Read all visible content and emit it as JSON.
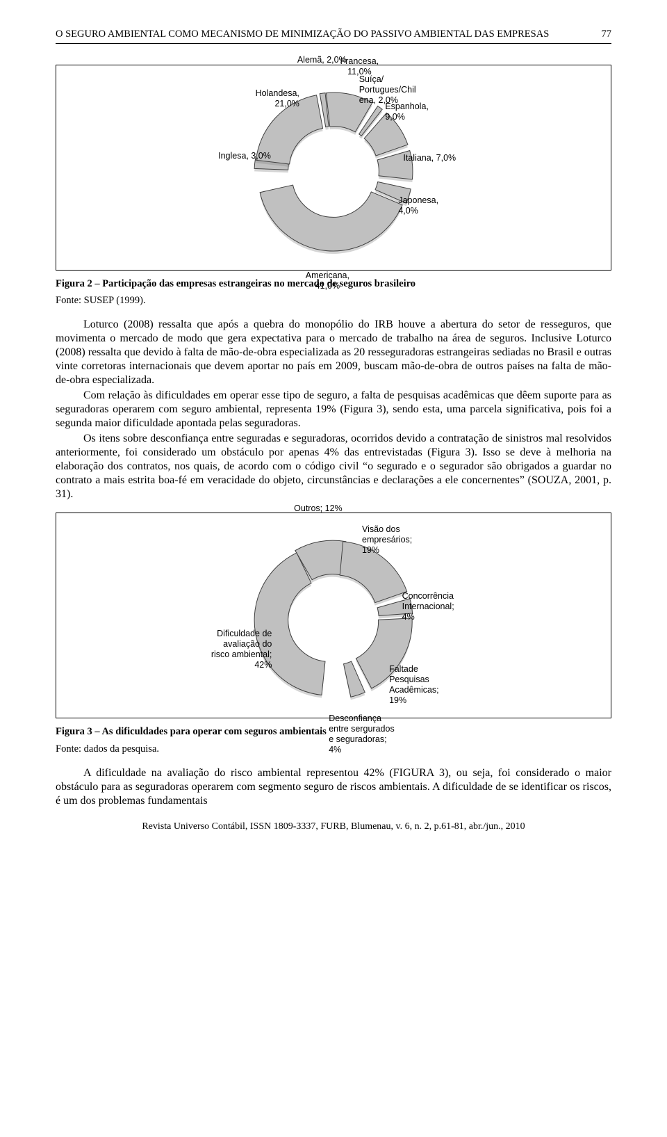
{
  "pageNumber": "77",
  "headerTitle": "O SEGURO AMBIENTAL COMO MECANISMO DE MINIMIZAÇÃO DO PASSIVO AMBIENTAL DAS EMPRESAS",
  "figure2": {
    "type": "exploded-donut",
    "background_color": "#ffffff",
    "slice_fill": "#c0c0c0",
    "slice_stroke": "#404040",
    "label_font": "Arial",
    "label_fontsize": 12.5,
    "slices": [
      {
        "label": "Alemã, 2,0%",
        "value": 2.0,
        "angle": -98
      },
      {
        "label": "Francesa,\n11,0%",
        "value": 11.0,
        "angle": -78
      },
      {
        "label": "Suíça/\nPortugues/Chil\nena, 2,0%",
        "value": 2.0,
        "angle": -54
      },
      {
        "label": "Espanhola,\n9,0%",
        "value": 9.0,
        "angle": -34
      },
      {
        "label": "Italiana, 7,0%",
        "value": 7.0,
        "angle": -5
      },
      {
        "label": "Japonesa,\n4,0%",
        "value": 4.0,
        "angle": 18
      },
      {
        "label": "Americana,\n41,0%",
        "value": 41.0,
        "angle": 95
      },
      {
        "label": "Inglesa, 3,0%",
        "value": 3.0,
        "angle": 186
      },
      {
        "label": "Holandesa,\n21,0%",
        "value": 21.0,
        "angle": 223
      }
    ],
    "captionBold": "Figura 2 – Participação das empresas estrangeiras no mercado de seguros brasileiro",
    "captionSource": "Fonte: SUSEP (1999)."
  },
  "paragraphs": [
    "Loturco (2008) ressalta que após a quebra do monopólio do IRB houve a abertura do setor de resseguros, que movimenta o mercado de modo que gera expectativa para o mercado de trabalho na área de seguros. Inclusive Loturco (2008) ressalta que devido à falta de mão-de-obra especializada as 20 resseguradoras estrangeiras sediadas no Brasil e outras vinte corretoras internacionais que devem aportar no país em 2009, buscam mão-de-obra de outros países na falta de mão-de-obra especializada.",
    "Com relação às dificuldades em operar esse tipo de seguro, a falta de pesquisas acadêmicas que dêem suporte para as seguradoras operarem com seguro ambiental, representa 19% (Figura 3), sendo esta, uma parcela significativa, pois foi a segunda maior dificuldade apontada pelas seguradoras.",
    "Os itens sobre desconfiança entre seguradas e seguradoras, ocorridos devido a contratação de sinistros mal resolvidos anteriormente, foi considerado um obstáculo por apenas 4% das entrevistadas (Figura 3). Isso se deve à melhoria na elaboração dos contratos, nos quais, de acordo com o código civil “o segurado e o segurador são obrigados a guardar no contrato a mais estrita boa-fé em veracidade do objeto, circunstâncias e declarações a ele concernentes” (SOUZA, 2001, p. 31)."
  ],
  "figure3": {
    "type": "exploded-donut",
    "background_color": "#ffffff",
    "slice_fill": "#c0c0c0",
    "slice_stroke": "#404040",
    "label_font": "Arial",
    "label_fontsize": 12.5,
    "slices": [
      {
        "label": "Outros; 12%",
        "value": 12,
        "angle": -100
      },
      {
        "label": "Visão dos\nempresários;\n19%",
        "value": 19,
        "angle": -52
      },
      {
        "label": "Concorrência\nInternacional;\n4%",
        "value": 4,
        "angle": -10
      },
      {
        "label": "Faltade\nPesquisas\nAcadêmicas;\n19%",
        "value": 19,
        "angle": 30
      },
      {
        "label": "Desconfiança\nentre sergurados\ne seguradoras;\n4%",
        "value": 4,
        "angle": 72
      },
      {
        "label": "Dificuldade de\navaliação do\nrisco ambiental;\n42%",
        "value": 42,
        "angle": 170
      }
    ],
    "captionBold": "Figura 3 – As dificuldades para operar com seguros ambientais",
    "captionSource": "Fonte: dados da pesquisa."
  },
  "closingParagraph": "A dificuldade na avaliação do risco ambiental representou 42% (FIGURA 3), ou seja, foi considerado o maior obstáculo para as seguradoras operarem com segmento seguro de riscos ambientais. A dificuldade de se identificar os riscos, é um dos problemas fundamentais",
  "footer": "Revista Universo Contábil, ISSN 1809-3337, FURB, Blumenau, v. 6, n. 2, p.61-81, abr./jun., 2010"
}
